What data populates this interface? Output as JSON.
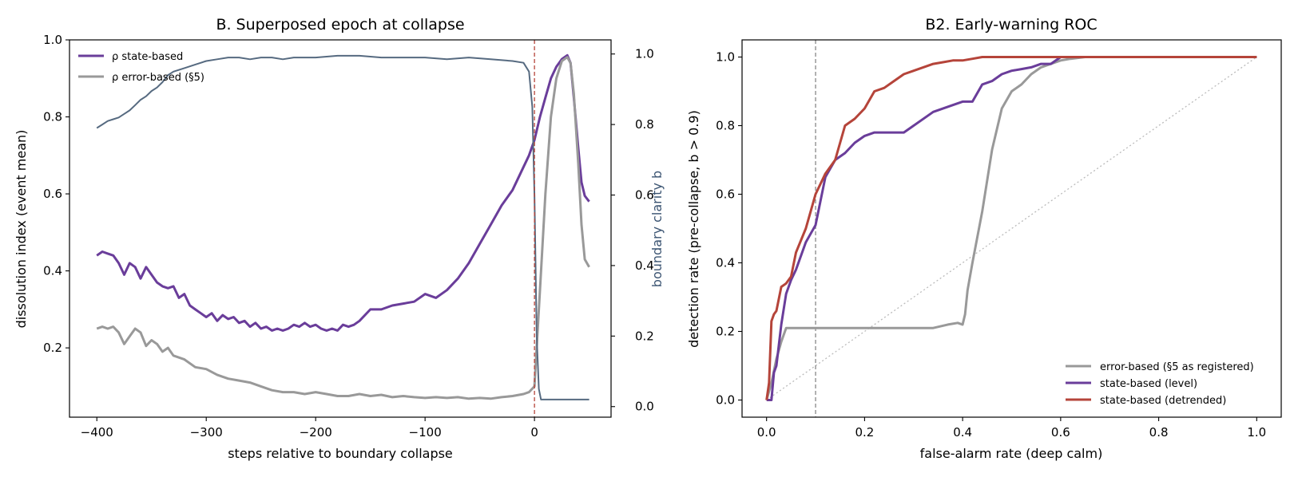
{
  "colors": {
    "state": "#6a3d9a",
    "error": "#999999",
    "clarity": "#566a80",
    "detrended": "#b5443a",
    "collapse_line": "#b5443a",
    "diag": "#bbbbbb",
    "vline": "#888888"
  },
  "chart_data": [
    {
      "type": "line",
      "title": "B. Superposed epoch at collapse",
      "xlabel": "steps relative to boundary collapse",
      "ylabel": "dissolution index (event mean)",
      "ylabel_right": "boundary clarity b",
      "xlim": [
        -425,
        70
      ],
      "ylim": [
        0.02,
        1.0
      ],
      "ylim_right": [
        -0.03,
        1.04
      ],
      "xticks": [
        "−400",
        "−300",
        "−200",
        "−100",
        "0"
      ],
      "yticks": [
        "0.2",
        "0.4",
        "0.6",
        "0.8",
        "1.0"
      ],
      "yticks_right": [
        "0.0",
        "0.2",
        "0.4",
        "0.6",
        "0.8",
        "1.0"
      ],
      "vline_x": 0,
      "legend_placement": "upper-left",
      "series": [
        {
          "name": "ρ state-based",
          "axis": "left",
          "x": [
            -400,
            -395,
            -390,
            -385,
            -380,
            -375,
            -370,
            -365,
            -360,
            -355,
            -350,
            -345,
            -340,
            -335,
            -330,
            -325,
            -320,
            -315,
            -310,
            -305,
            -300,
            -295,
            -290,
            -285,
            -280,
            -275,
            -270,
            -265,
            -260,
            -255,
            -250,
            -245,
            -240,
            -235,
            -230,
            -225,
            -220,
            -215,
            -210,
            -205,
            -200,
            -195,
            -190,
            -185,
            -180,
            -175,
            -170,
            -165,
            -160,
            -150,
            -140,
            -130,
            -120,
            -110,
            -100,
            -90,
            -80,
            -70,
            -60,
            -50,
            -40,
            -30,
            -20,
            -10,
            -5,
            0,
            5,
            10,
            15,
            20,
            25,
            30,
            33,
            36,
            40,
            43,
            46,
            50
          ],
          "y": [
            0.44,
            0.45,
            0.445,
            0.44,
            0.42,
            0.39,
            0.42,
            0.41,
            0.38,
            0.41,
            0.39,
            0.37,
            0.36,
            0.355,
            0.36,
            0.33,
            0.34,
            0.31,
            0.3,
            0.29,
            0.28,
            0.29,
            0.27,
            0.285,
            0.275,
            0.28,
            0.265,
            0.27,
            0.255,
            0.265,
            0.25,
            0.255,
            0.245,
            0.25,
            0.245,
            0.25,
            0.26,
            0.255,
            0.265,
            0.255,
            0.26,
            0.25,
            0.245,
            0.25,
            0.245,
            0.26,
            0.255,
            0.26,
            0.27,
            0.3,
            0.3,
            0.31,
            0.315,
            0.32,
            0.34,
            0.33,
            0.35,
            0.38,
            0.42,
            0.47,
            0.52,
            0.57,
            0.61,
            0.67,
            0.7,
            0.74,
            0.8,
            0.85,
            0.9,
            0.93,
            0.95,
            0.96,
            0.94,
            0.85,
            0.72,
            0.63,
            0.595,
            0.58
          ]
        },
        {
          "name": "ρ error-based (§5)",
          "axis": "left",
          "x": [
            -400,
            -395,
            -390,
            -385,
            -380,
            -375,
            -370,
            -365,
            -360,
            -355,
            -350,
            -345,
            -340,
            -335,
            -330,
            -325,
            -320,
            -310,
            -300,
            -290,
            -280,
            -270,
            -260,
            -250,
            -240,
            -230,
            -220,
            -210,
            -200,
            -190,
            -180,
            -170,
            -160,
            -150,
            -140,
            -130,
            -120,
            -110,
            -100,
            -90,
            -80,
            -70,
            -60,
            -50,
            -40,
            -30,
            -20,
            -10,
            -5,
            0,
            5,
            10,
            15,
            20,
            25,
            30,
            33,
            36,
            40,
            43,
            46,
            50
          ],
          "y": [
            0.25,
            0.255,
            0.25,
            0.255,
            0.24,
            0.21,
            0.23,
            0.25,
            0.24,
            0.205,
            0.22,
            0.21,
            0.19,
            0.2,
            0.18,
            0.175,
            0.17,
            0.15,
            0.145,
            0.13,
            0.12,
            0.115,
            0.11,
            0.1,
            0.09,
            0.085,
            0.085,
            0.08,
            0.085,
            0.08,
            0.075,
            0.075,
            0.08,
            0.075,
            0.078,
            0.072,
            0.075,
            0.072,
            0.07,
            0.072,
            0.07,
            0.072,
            0.068,
            0.07,
            0.068,
            0.072,
            0.075,
            0.08,
            0.085,
            0.1,
            0.35,
            0.6,
            0.8,
            0.9,
            0.945,
            0.955,
            0.94,
            0.86,
            0.68,
            0.52,
            0.43,
            0.41
          ]
        },
        {
          "name": "boundary clarity",
          "axis": "right",
          "x": [
            -400,
            -395,
            -390,
            -385,
            -380,
            -375,
            -370,
            -365,
            -360,
            -355,
            -350,
            -345,
            -340,
            -335,
            -330,
            -320,
            -310,
            -300,
            -290,
            -280,
            -270,
            -260,
            -250,
            -240,
            -230,
            -220,
            -210,
            -200,
            -180,
            -160,
            -140,
            -120,
            -100,
            -80,
            -60,
            -40,
            -20,
            -10,
            -5,
            -2,
            0,
            2,
            4,
            6,
            10,
            20,
            30,
            40,
            50
          ],
          "y": [
            0.79,
            0.8,
            0.81,
            0.815,
            0.82,
            0.83,
            0.84,
            0.855,
            0.87,
            0.88,
            0.895,
            0.905,
            0.92,
            0.94,
            0.95,
            0.96,
            0.97,
            0.98,
            0.985,
            0.99,
            0.99,
            0.985,
            0.99,
            0.99,
            0.985,
            0.99,
            0.99,
            0.99,
            0.995,
            0.995,
            0.99,
            0.99,
            0.99,
            0.985,
            0.99,
            0.985,
            0.98,
            0.975,
            0.95,
            0.85,
            0.6,
            0.2,
            0.05,
            0.02,
            0.02,
            0.02,
            0.02,
            0.02,
            0.02
          ]
        }
      ]
    },
    {
      "type": "line",
      "title": "B2. Early-warning ROC",
      "xlabel": "false-alarm rate (deep calm)",
      "ylabel": "detection rate (pre-collapse, b > 0.9)",
      "xlim": [
        -0.05,
        1.05
      ],
      "ylim": [
        -0.05,
        1.05
      ],
      "xticks": [
        "0.0",
        "0.2",
        "0.4",
        "0.6",
        "0.8",
        "1.0"
      ],
      "yticks": [
        "0.0",
        "0.2",
        "0.4",
        "0.6",
        "0.8",
        "1.0"
      ],
      "vline_x": 0.1,
      "legend_placement": "lower-right",
      "diagonal": true,
      "series": [
        {
          "name": "error-based (§5 as registered)",
          "color_key": "error",
          "x": [
            0.0,
            0.01,
            0.02,
            0.03,
            0.04,
            0.06,
            0.1,
            0.2,
            0.3,
            0.34,
            0.37,
            0.39,
            0.4,
            0.405,
            0.41,
            0.42,
            0.44,
            0.46,
            0.48,
            0.5,
            0.52,
            0.54,
            0.56,
            0.58,
            0.6,
            0.62,
            0.65,
            0.7,
            0.8,
            1.0
          ],
          "y": [
            0.0,
            0.05,
            0.12,
            0.17,
            0.21,
            0.21,
            0.21,
            0.21,
            0.21,
            0.21,
            0.22,
            0.225,
            0.22,
            0.25,
            0.32,
            0.4,
            0.55,
            0.73,
            0.85,
            0.9,
            0.92,
            0.95,
            0.97,
            0.98,
            0.99,
            0.995,
            1.0,
            1.0,
            1.0,
            1.0
          ]
        },
        {
          "name": "state-based (level)",
          "color_key": "state",
          "x": [
            0.0,
            0.005,
            0.01,
            0.015,
            0.02,
            0.03,
            0.04,
            0.05,
            0.06,
            0.08,
            0.1,
            0.12,
            0.14,
            0.16,
            0.18,
            0.2,
            0.22,
            0.24,
            0.26,
            0.28,
            0.3,
            0.34,
            0.38,
            0.4,
            0.42,
            0.44,
            0.46,
            0.48,
            0.5,
            0.52,
            0.54,
            0.56,
            0.58,
            0.6,
            0.62,
            0.7,
            0.8,
            1.0
          ],
          "y": [
            0.0,
            0.0,
            0.0,
            0.08,
            0.1,
            0.22,
            0.31,
            0.35,
            0.38,
            0.46,
            0.51,
            0.65,
            0.7,
            0.72,
            0.75,
            0.77,
            0.78,
            0.78,
            0.78,
            0.78,
            0.8,
            0.84,
            0.86,
            0.87,
            0.87,
            0.92,
            0.93,
            0.95,
            0.96,
            0.965,
            0.97,
            0.98,
            0.98,
            1.0,
            1.0,
            1.0,
            1.0,
            1.0
          ]
        },
        {
          "name": "state-based (detrended)",
          "color_key": "detrended",
          "x": [
            0.0,
            0.005,
            0.01,
            0.015,
            0.02,
            0.03,
            0.04,
            0.05,
            0.06,
            0.08,
            0.1,
            0.12,
            0.14,
            0.16,
            0.18,
            0.2,
            0.22,
            0.24,
            0.26,
            0.28,
            0.3,
            0.34,
            0.36,
            0.38,
            0.4,
            0.42,
            0.44,
            0.5,
            0.6,
            0.7,
            1.0
          ],
          "y": [
            0.0,
            0.05,
            0.23,
            0.25,
            0.26,
            0.33,
            0.34,
            0.36,
            0.43,
            0.5,
            0.6,
            0.66,
            0.7,
            0.8,
            0.82,
            0.85,
            0.9,
            0.91,
            0.93,
            0.95,
            0.96,
            0.98,
            0.985,
            0.99,
            0.99,
            0.995,
            1.0,
            1.0,
            1.0,
            1.0,
            1.0
          ]
        }
      ]
    }
  ]
}
